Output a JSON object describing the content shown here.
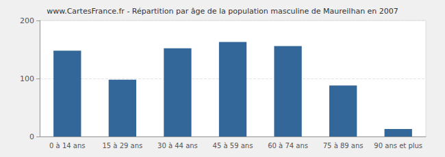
{
  "chart_data": {
    "type": "bar",
    "title": "www.CartesFrance.fr - Répartition par âge de la population masculine de Maureilhan en 2007",
    "categories": [
      "0 à 14 ans",
      "15 à 29 ans",
      "30 à 44 ans",
      "45 à 59 ans",
      "60 à 74 ans",
      "75 à 89 ans",
      "90 ans et plus"
    ],
    "values": [
      148,
      98,
      152,
      163,
      156,
      88,
      13
    ],
    "color": "#336699",
    "ylim": [
      0,
      200
    ],
    "yticks": [
      0,
      100,
      200
    ],
    "grid": true
  }
}
